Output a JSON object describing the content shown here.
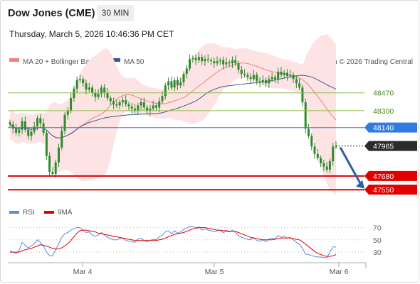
{
  "header": {
    "title": "Dow Jones (CME)",
    "timeframe": "30 MIN",
    "datetime": "Thursday, March 5, 2026 10:46:36 PM CET"
  },
  "legend": {
    "ma20": "MA 20 + Bollinger Bands",
    "ma50": "MA 50",
    "copyright": "Research © 2026 Trading Central",
    "rsi": "RSI",
    "rsi_ma": "9MA"
  },
  "colors": {
    "ma20": "#f08080",
    "ma50": "#3b5b92",
    "bollinger_fill": "#fde3e3",
    "candle": "#2e8b2e",
    "resistance": "#8fbf4a",
    "pivot": "#2f7be0",
    "support": "#e00000",
    "current": "#2b2b2b",
    "rsi": "#5a8ad8",
    "rsi_ma": "#e00000",
    "arrow": "#2d5ea8"
  },
  "chart_data": [
    {
      "type": "candlestick",
      "x_ticks": [
        "Mar 4",
        "Mar 5",
        "Mar 6"
      ],
      "ylim": [
        47450,
        48650
      ],
      "levels": [
        {
          "value": 48470,
          "label": "48470",
          "kind": "resistance"
        },
        {
          "value": 48300,
          "label": "48300",
          "kind": "resistance"
        },
        {
          "value": 48140,
          "label": "48140",
          "kind": "pivot"
        },
        {
          "value": 47965,
          "label": "47965",
          "kind": "current"
        },
        {
          "value": 47680,
          "label": "47680",
          "kind": "support"
        },
        {
          "value": 47550,
          "label": "47550",
          "kind": "support"
        }
      ],
      "close": [
        48170,
        48130,
        48090,
        48120,
        48200,
        48120,
        48060,
        48100,
        48150,
        48230,
        48180,
        48090,
        47870,
        47720,
        47700,
        47810,
        47950,
        48110,
        48260,
        48300,
        48420,
        48510,
        48590,
        48600,
        48560,
        48500,
        48520,
        48470,
        48430,
        48460,
        48520,
        48470,
        48420,
        48390,
        48360,
        48350,
        48380,
        48400,
        48360,
        48340,
        48320,
        48300,
        48350,
        48380,
        48330,
        48300,
        48320,
        48350,
        48330,
        48390,
        48440,
        48540,
        48580,
        48520,
        48590,
        48540,
        48570,
        48650,
        48700,
        48790,
        48800,
        48780,
        48810,
        48770,
        48790,
        48780,
        48770,
        48750,
        48770,
        48780,
        48740,
        48760,
        48750,
        48780,
        48750,
        48690,
        48650,
        48640,
        48620,
        48600,
        48640,
        48580,
        48570,
        48590,
        48560,
        48600,
        48620,
        48600,
        48670,
        48640,
        48660,
        48630,
        48640,
        48600,
        48560,
        48520,
        48380,
        48130,
        48060,
        47960,
        47890,
        47850,
        47800,
        47770,
        47740,
        47820,
        47960,
        47965
      ]
    },
    {
      "type": "line",
      "title": "RSI",
      "yticks": [
        70,
        50,
        30
      ],
      "ylim": [
        15,
        80
      ],
      "series": [
        {
          "name": "RSI",
          "values": [
            32,
            30,
            28,
            33,
            46,
            41,
            37,
            40,
            44,
            50,
            46,
            40,
            30,
            24,
            24,
            34,
            44,
            54,
            60,
            62,
            66,
            68,
            70,
            70,
            66,
            62,
            63,
            58,
            56,
            58,
            62,
            58,
            54,
            52,
            50,
            50,
            52,
            53,
            49,
            48,
            47,
            46,
            51,
            53,
            49,
            47,
            49,
            51,
            50,
            55,
            58,
            63,
            65,
            60,
            65,
            61,
            63,
            67,
            69,
            72,
            72,
            70,
            71,
            66,
            68,
            66,
            65,
            63,
            65,
            66,
            62,
            64,
            63,
            66,
            62,
            57,
            54,
            53,
            51,
            50,
            54,
            49,
            48,
            50,
            47,
            51,
            53,
            51,
            57,
            54,
            56,
            53,
            54,
            50,
            46,
            43,
            36,
            27,
            26,
            24,
            23,
            22,
            22,
            21,
            21,
            30,
            39,
            38
          ]
        },
        {
          "name": "9MA",
          "values": [
            30,
            30,
            30,
            30,
            32,
            34,
            35,
            36,
            38,
            40,
            42,
            41,
            40,
            38,
            36,
            35,
            35,
            37,
            40,
            44,
            49,
            55,
            61,
            65,
            66,
            66,
            65,
            64,
            63,
            61,
            60,
            59,
            58,
            57,
            56,
            55,
            54,
            53,
            52,
            51,
            50,
            49,
            49,
            49,
            49,
            49,
            49,
            49,
            49,
            50,
            51,
            53,
            55,
            57,
            59,
            60,
            61,
            62,
            64,
            66,
            68,
            69,
            70,
            70,
            70,
            69,
            68,
            67,
            66,
            66,
            65,
            65,
            64,
            64,
            64,
            62,
            60,
            58,
            56,
            54,
            53,
            52,
            51,
            50,
            50,
            50,
            50,
            51,
            52,
            53,
            53,
            53,
            53,
            52,
            51,
            50,
            47,
            43,
            39,
            35,
            31,
            28,
            26,
            24,
            23,
            23,
            24,
            26
          ]
        }
      ]
    }
  ]
}
